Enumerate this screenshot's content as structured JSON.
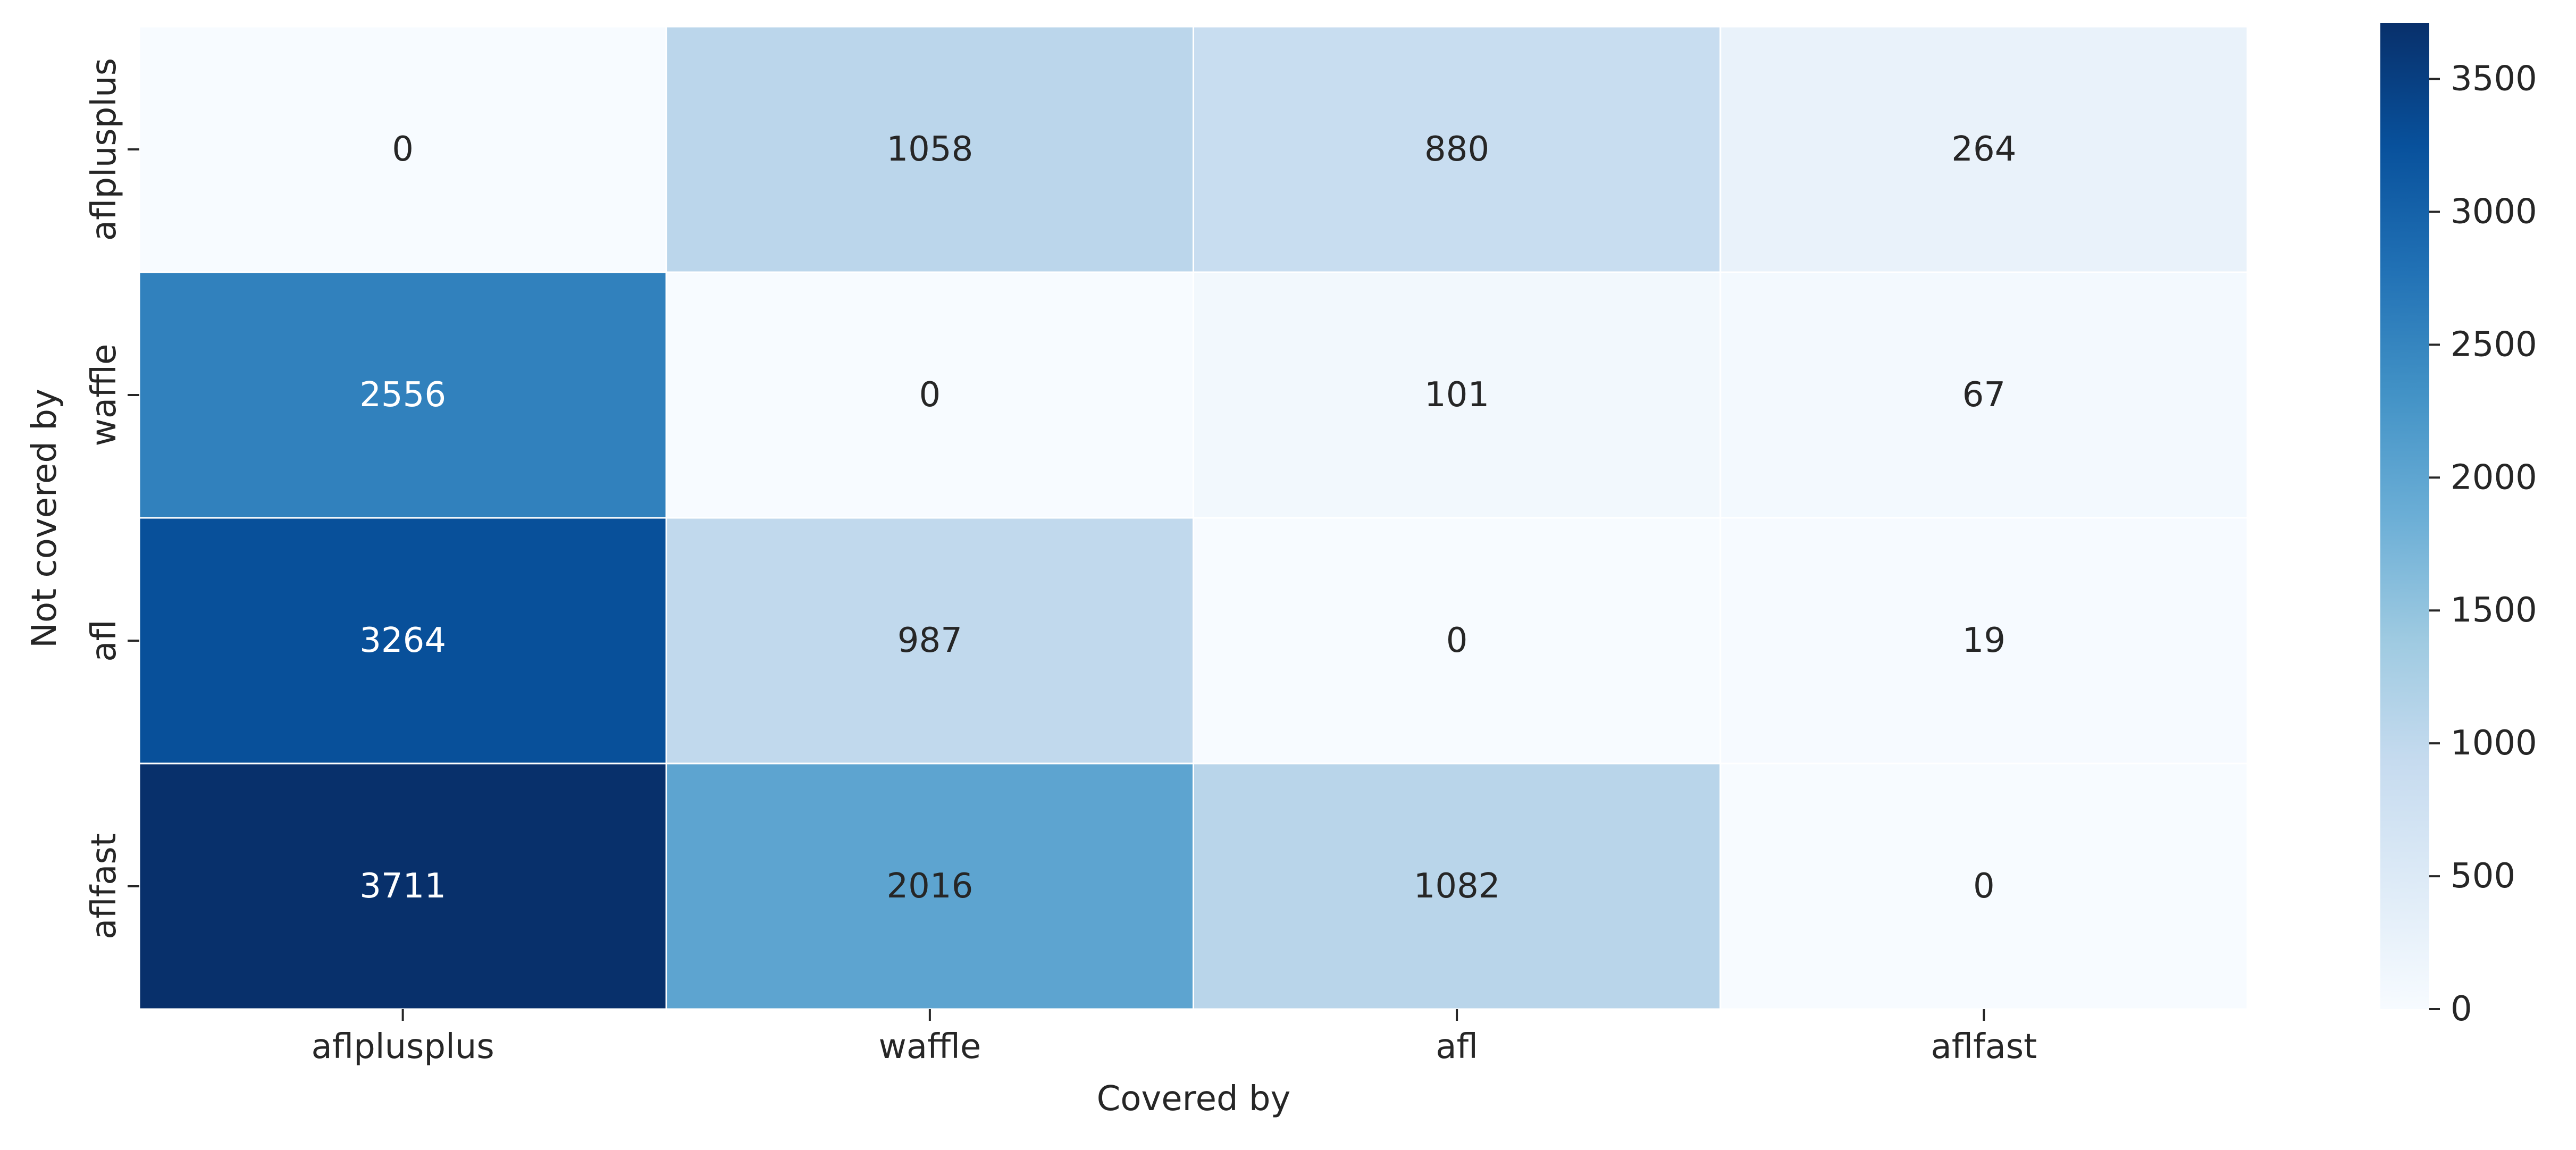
{
  "chart_data": {
    "type": "heatmap",
    "title": "",
    "xlabel": "Covered by",
    "ylabel": "Not covered by",
    "x_categories": [
      "aflplusplus",
      "waffle",
      "afl",
      "aflfast"
    ],
    "y_categories": [
      "aflplusplus",
      "waffle",
      "afl",
      "aflfast"
    ],
    "values": [
      [
        0,
        1058,
        880,
        264
      ],
      [
        2556,
        0,
        101,
        67
      ],
      [
        3264,
        987,
        0,
        19
      ],
      [
        3711,
        2016,
        1082,
        0
      ]
    ],
    "colorbar": {
      "range": [
        0,
        3711
      ],
      "ticks": [
        0,
        500,
        1000,
        1500,
        2000,
        2500,
        3000,
        3500
      ],
      "colormap": "Blues",
      "colors": [
        "#f7fbff",
        "#deebf7",
        "#c6dbef",
        "#9ecae1",
        "#6baed6",
        "#4292c6",
        "#2171b5",
        "#08519c",
        "#08306b"
      ]
    },
    "annotations": "cell values shown",
    "grid": false
  }
}
